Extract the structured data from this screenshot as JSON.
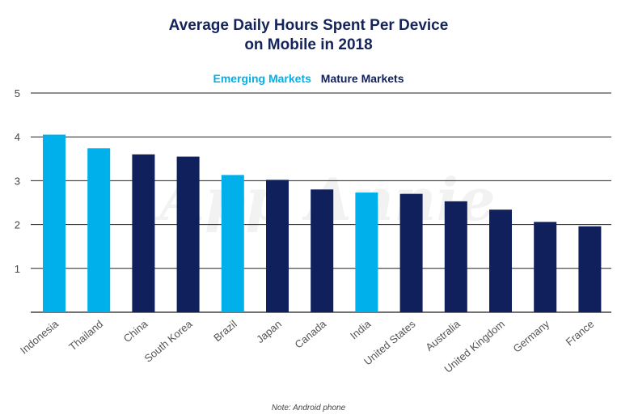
{
  "chart_data": {
    "type": "bar",
    "title": "Average Daily Hours Spent Per Device on Mobile in 2018",
    "title_lines": [
      "Average Daily Hours Spent Per Device",
      "on Mobile in 2018"
    ],
    "categories": [
      "Indonesia",
      "Thailand",
      "China",
      "South Korea",
      "Brazil",
      "Japan",
      "Canada",
      "India",
      "United States",
      "Australia",
      "United Kingdom",
      "Germany",
      "France"
    ],
    "values": [
      4.05,
      3.74,
      3.6,
      3.55,
      3.13,
      3.02,
      2.8,
      2.73,
      2.7,
      2.53,
      2.34,
      2.06,
      1.96
    ],
    "groups": [
      "Emerging Markets",
      "Emerging Markets",
      "Mature Markets",
      "Mature Markets",
      "Emerging Markets",
      "Mature Markets",
      "Mature Markets",
      "Emerging Markets",
      "Mature Markets",
      "Mature Markets",
      "Mature Markets",
      "Mature Markets",
      "Mature Markets"
    ],
    "legend": [
      {
        "name": "Emerging Markets",
        "color": "#00b0ea"
      },
      {
        "name": "Mature Markets",
        "color": "#0f205c"
      }
    ],
    "legend_position": "top-center",
    "ylim": [
      0,
      5
    ],
    "yticks": [
      1,
      2,
      3,
      4,
      5
    ],
    "xlabel": "",
    "ylabel": "",
    "grid": true,
    "watermark": "App Annie",
    "note": "Note: Android phone"
  },
  "colors": {
    "title": "#14245a",
    "emerging": "#00b0ea",
    "mature": "#0f205c",
    "gridline": "#222222",
    "axis_text": "#444444"
  }
}
